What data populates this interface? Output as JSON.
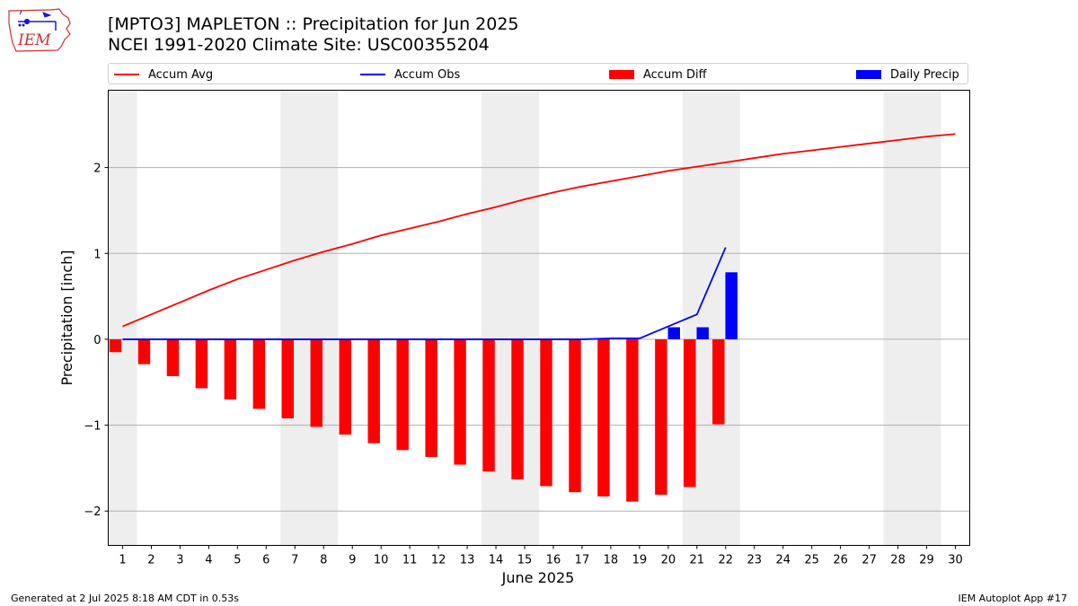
{
  "logo": {
    "text": "IEM",
    "icon": "iowa-state-outline-icon"
  },
  "header": {
    "title": "[MPTO3] MAPLETON :: Precipitation for Jun 2025",
    "subtitle": "NCEI 1991-2020 Climate Site: USC00355204"
  },
  "legend": {
    "placement": "top",
    "items": [
      {
        "label": "Accum Avg",
        "kind": "line",
        "color": "#ff0000"
      },
      {
        "label": "Accum Obs",
        "kind": "line",
        "color": "#0000ff"
      },
      {
        "label": "Accum Diff",
        "kind": "bar",
        "color": "#ff0000"
      },
      {
        "label": "Daily Precip",
        "kind": "bar",
        "color": "#0000ff"
      }
    ]
  },
  "footer": {
    "left": "Generated at 2 Jul 2025 8:18 AM CDT in 0.53s",
    "right": "IEM Autoplot App #17"
  },
  "chart_data": {
    "type": "bar",
    "xlabel": "June 2025",
    "ylabel": "Precipitation [inch]",
    "x": [
      1,
      2,
      3,
      4,
      5,
      6,
      7,
      8,
      9,
      10,
      11,
      12,
      13,
      14,
      15,
      16,
      17,
      18,
      19,
      20,
      21,
      22,
      23,
      24,
      25,
      26,
      27,
      28,
      29,
      30
    ],
    "xlim": [
      0.5,
      30.5
    ],
    "ylim": [
      -2.4,
      2.9
    ],
    "yticks": [
      -2,
      -1,
      0,
      1,
      2
    ],
    "ytick_labels": [
      "−2",
      "−1",
      "0",
      "1",
      "2"
    ],
    "grid": "horizontal",
    "weekend_shading": [
      [
        0.5,
        1.5
      ],
      [
        6.5,
        8.5
      ],
      [
        13.5,
        15.5
      ],
      [
        20.5,
        22.5
      ],
      [
        27.5,
        29.5
      ]
    ],
    "shading_color": "#eeeeee",
    "series": [
      {
        "name": "Accum Avg",
        "kind": "line",
        "color": "#ff0000",
        "x": [
          1,
          2,
          3,
          4,
          5,
          6,
          7,
          8,
          9,
          10,
          11,
          12,
          13,
          14,
          15,
          16,
          17,
          18,
          19,
          20,
          21,
          22,
          23,
          24,
          25,
          26,
          27,
          28,
          29,
          30
        ],
        "values": [
          0.15,
          0.29,
          0.43,
          0.57,
          0.7,
          0.81,
          0.92,
          1.02,
          1.11,
          1.21,
          1.29,
          1.37,
          1.46,
          1.54,
          1.63,
          1.71,
          1.78,
          1.84,
          1.9,
          1.96,
          2.01,
          2.06,
          2.11,
          2.16,
          2.2,
          2.24,
          2.28,
          2.32,
          2.36,
          2.39
        ]
      },
      {
        "name": "Accum Obs",
        "kind": "line",
        "color": "#0000ff",
        "x": [
          1,
          2,
          3,
          4,
          5,
          6,
          7,
          8,
          9,
          10,
          11,
          12,
          13,
          14,
          15,
          16,
          17,
          18,
          19,
          20,
          21,
          22
        ],
        "values": [
          0,
          0,
          0,
          0,
          0,
          0,
          0,
          0,
          0,
          0,
          0,
          0,
          0,
          0,
          0,
          0,
          0,
          0.01,
          0.01,
          0.15,
          0.29,
          1.07
        ]
      },
      {
        "name": "Accum Diff",
        "kind": "bar",
        "color": "#ff0000",
        "x": [
          1,
          2,
          3,
          4,
          5,
          6,
          7,
          8,
          9,
          10,
          11,
          12,
          13,
          14,
          15,
          16,
          17,
          18,
          19,
          20,
          21,
          22
        ],
        "values": [
          -0.15,
          -0.29,
          -0.43,
          -0.57,
          -0.7,
          -0.81,
          -0.92,
          -1.02,
          -1.11,
          -1.21,
          -1.29,
          -1.37,
          -1.46,
          -1.54,
          -1.63,
          -1.71,
          -1.78,
          -1.83,
          -1.89,
          -1.81,
          -1.72,
          -0.99
        ]
      },
      {
        "name": "Daily Precip",
        "kind": "bar",
        "color": "#0000ff",
        "x": [
          20,
          21,
          22
        ],
        "values": [
          0.14,
          0.14,
          0.78
        ]
      }
    ]
  }
}
